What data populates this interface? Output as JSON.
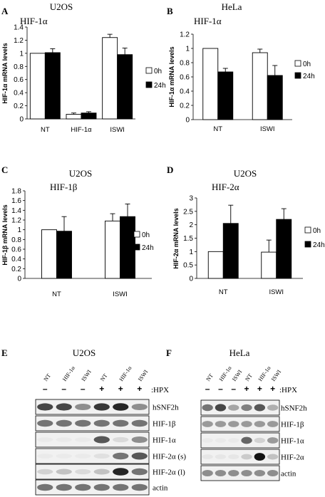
{
  "chart_data": [
    {
      "type": "bar",
      "panel": "A",
      "cell_line": "U2OS",
      "gene": "HIF-1α",
      "ylabel": "HIF-1α mRNA levels",
      "categories": [
        "NT",
        "HIF-1α",
        "ISWI"
      ],
      "series": [
        {
          "name": "0h",
          "values": [
            1.0,
            0.07,
            1.24
          ],
          "errors": [
            0.0,
            0.02,
            0.05
          ],
          "color": "#ffffff"
        },
        {
          "name": "24h",
          "values": [
            1.01,
            0.09,
            0.98
          ],
          "errors": [
            0.06,
            0.02,
            0.1
          ],
          "color": "#000000"
        }
      ],
      "ylim": [
        0,
        1.4
      ],
      "ticks": [
        "0",
        "0.2",
        "0.4",
        "0.6",
        "0.8",
        "1",
        "1.2",
        "1.4"
      ]
    },
    {
      "type": "bar",
      "panel": "B",
      "cell_line": "HeLa",
      "gene": "HIF-1α",
      "ylabel": "HIF-1α mRNA levels",
      "categories": [
        "NT",
        "ISWI"
      ],
      "series": [
        {
          "name": "0h",
          "values": [
            1.0,
            0.94
          ],
          "errors": [
            0.0,
            0.05
          ],
          "color": "#ffffff"
        },
        {
          "name": "24h",
          "values": [
            0.67,
            0.62
          ],
          "errors": [
            0.05,
            0.14
          ],
          "color": "#000000"
        }
      ],
      "ylim": [
        0,
        1.2
      ],
      "ticks": [
        "0",
        "0.2",
        "0.4",
        "0.6",
        "0.8",
        "1",
        "1.2"
      ]
    },
    {
      "type": "bar",
      "panel": "C",
      "cell_line": "U2OS",
      "gene": "HIF-1β",
      "ylabel": "HIF-1β mRNA levels",
      "categories": [
        "NT",
        "ISWI"
      ],
      "series": [
        {
          "name": "0h",
          "values": [
            1.0,
            1.18
          ],
          "errors": [
            0.0,
            0.15
          ],
          "color": "#ffffff"
        },
        {
          "name": "24h",
          "values": [
            0.97,
            1.27
          ],
          "errors": [
            0.3,
            0.26
          ],
          "color": "#000000"
        }
      ],
      "ylim": [
        0,
        1.8
      ],
      "ticks": [
        "0",
        "0.2",
        "0.4",
        "0.6",
        "0.8",
        "1",
        "1.2",
        "1.4",
        "1.6",
        "1.8"
      ]
    },
    {
      "type": "bar",
      "panel": "D",
      "cell_line": "U2OS",
      "gene": "HIF-2α",
      "ylabel": "HIF-2α mRNA levels",
      "categories": [
        "NT",
        "ISWI"
      ],
      "series": [
        {
          "name": "0h",
          "values": [
            1.0,
            0.98
          ],
          "errors": [
            0.0,
            0.45
          ],
          "color": "#ffffff"
        },
        {
          "name": "24h",
          "values": [
            2.05,
            2.2
          ],
          "errors": [
            0.68,
            0.4
          ],
          "color": "#000000"
        }
      ],
      "ylim": [
        0,
        3
      ],
      "ticks": [
        "0",
        "0.5",
        "1",
        "1.5",
        "2",
        "2.5",
        "3"
      ]
    }
  ],
  "blots": [
    {
      "panel": "E",
      "cell_line": "U2OS",
      "lanes": [
        "NT",
        "HIF-1α",
        "ISWI",
        "NT",
        "HIF-1α",
        "ISWI"
      ],
      "hpx_signs": [
        "–",
        "–",
        "–",
        "+",
        "+",
        "+"
      ],
      "hpx_label": ":HPX",
      "rows": [
        {
          "label": "hSNF2h",
          "intensities": [
            0.85,
            0.85,
            0.6,
            0.9,
            0.95,
            0.6
          ]
        },
        {
          "label": "HIF-1β",
          "intensities": [
            0.7,
            0.7,
            0.7,
            0.7,
            0.7,
            0.7
          ]
        },
        {
          "label": "HIF-1α",
          "intensities": [
            0.05,
            0.05,
            0.05,
            0.8,
            0.2,
            0.6
          ]
        },
        {
          "label": "HIF-2α (s)",
          "intensities": [
            0.05,
            0.05,
            0.05,
            0.15,
            0.7,
            0.8
          ]
        },
        {
          "label": "HIF-2α (l)",
          "intensities": [
            0.25,
            0.35,
            0.2,
            0.35,
            0.95,
            0.7
          ]
        },
        {
          "label": "actin",
          "intensities": [
            0.7,
            0.7,
            0.7,
            0.7,
            0.7,
            0.7
          ]
        }
      ]
    },
    {
      "panel": "F",
      "cell_line": "HeLa",
      "lanes": [
        "NT",
        "HIF-1α",
        "ISWI",
        "NT",
        "HIF-1α",
        "ISWI"
      ],
      "hpx_signs": [
        "–",
        "–",
        "–",
        "+",
        "+",
        "+"
      ],
      "hpx_label": ":HPX",
      "rows": [
        {
          "label": "hSNF2h",
          "intensities": [
            0.7,
            0.85,
            0.5,
            0.65,
            0.8,
            0.45
          ]
        },
        {
          "label": "HIF-1β",
          "intensities": [
            0.55,
            0.55,
            0.55,
            0.55,
            0.55,
            0.55
          ]
        },
        {
          "label": "HIF-1α",
          "intensities": [
            0.05,
            0.05,
            0.05,
            0.75,
            0.25,
            0.55
          ]
        },
        {
          "label": "HIF-2α",
          "intensities": [
            0.1,
            0.1,
            0.1,
            0.3,
            1.0,
            0.35
          ]
        },
        {
          "label": "actin",
          "intensities": [
            0.6,
            0.6,
            0.6,
            0.6,
            0.6,
            0.6
          ]
        }
      ]
    }
  ]
}
